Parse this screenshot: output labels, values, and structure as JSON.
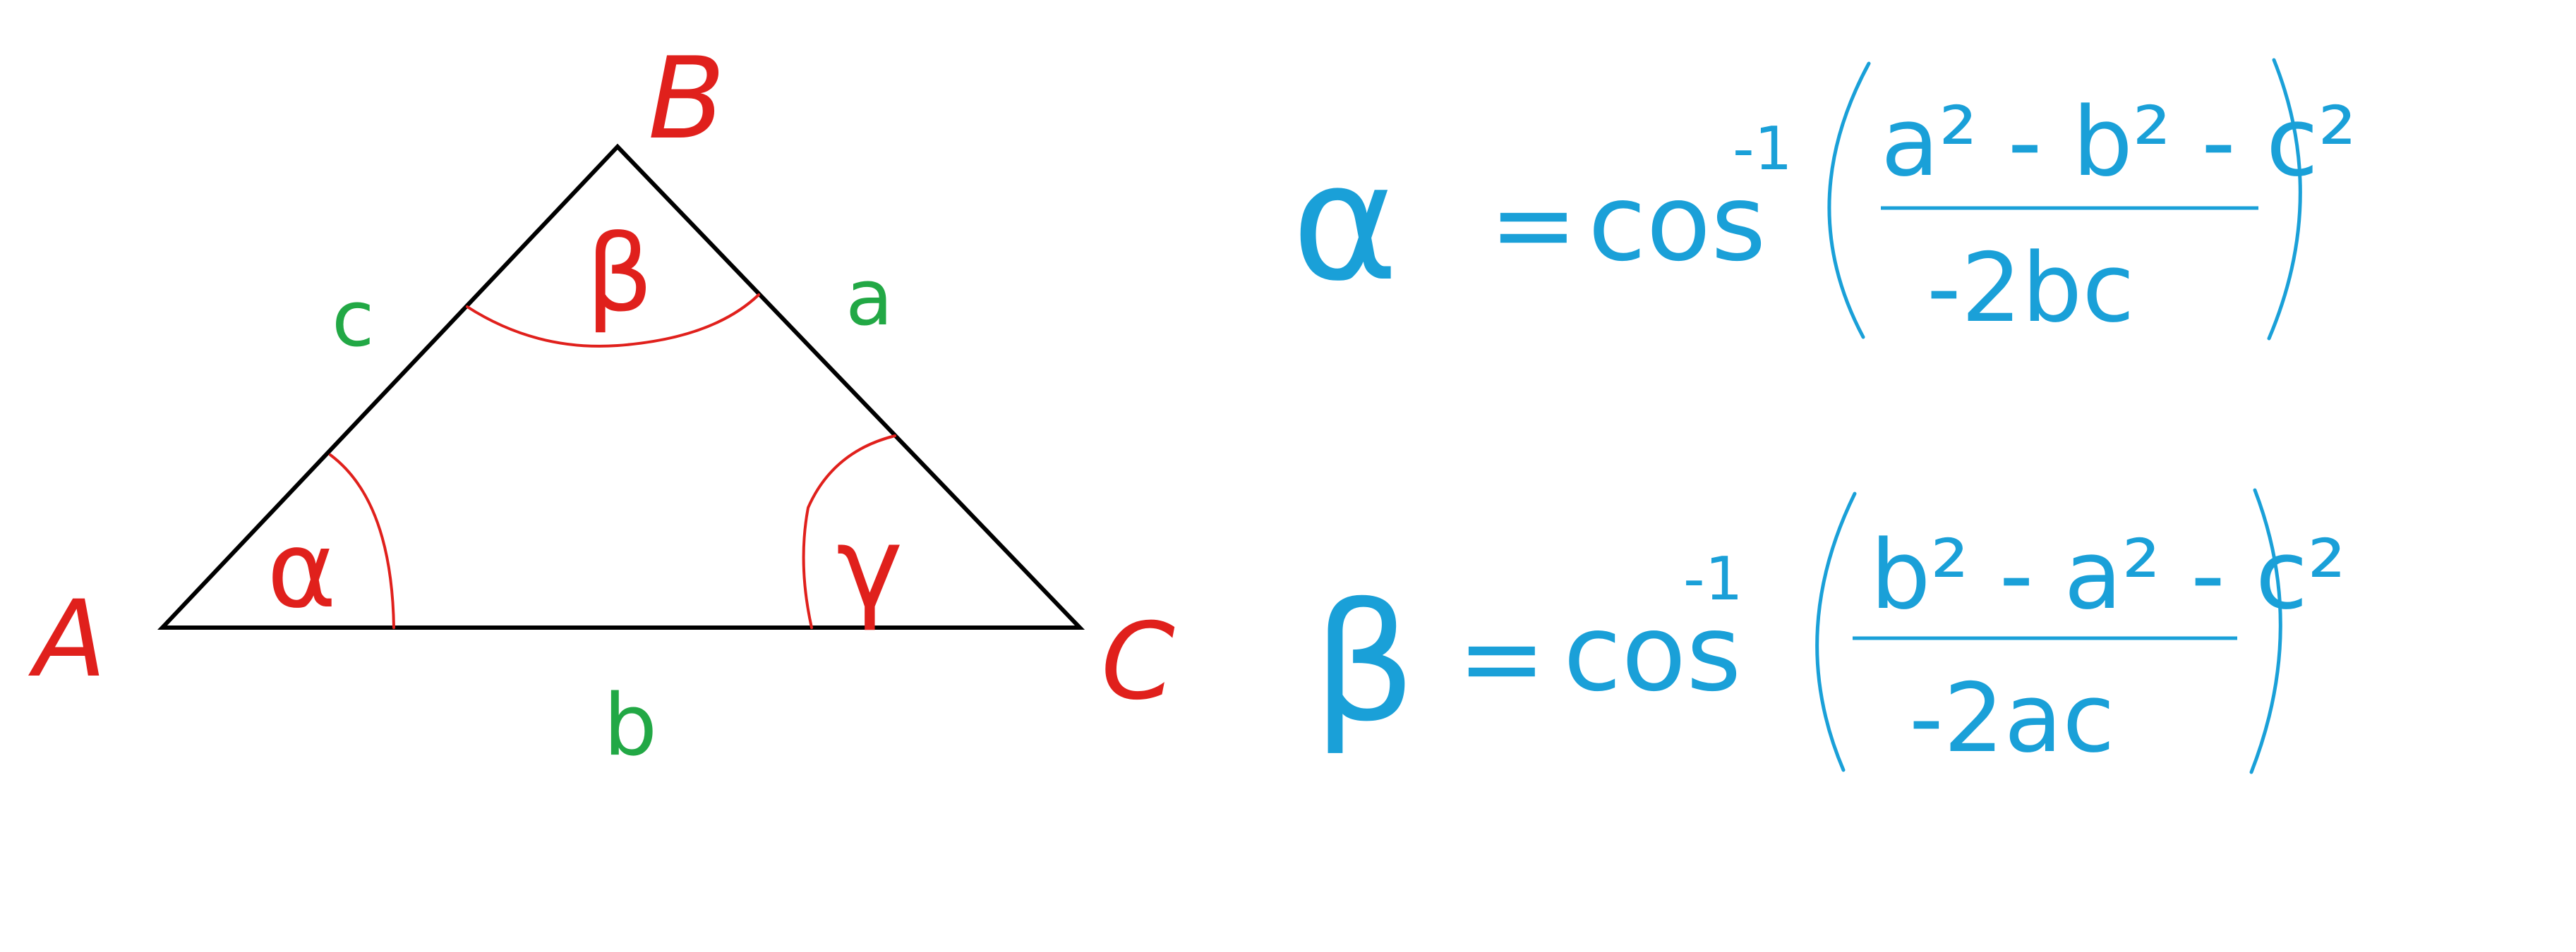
{
  "colors": {
    "triangle": "#000000",
    "vertex_label": "#e0201c",
    "angle_mark": "#e0201c",
    "side_label": "#22a845",
    "formula": "#1aa0d8"
  },
  "vertices": {
    "A": "A",
    "B": "B",
    "C": "C"
  },
  "sides": {
    "a": "a",
    "b": "b",
    "c": "c"
  },
  "angles": {
    "alpha": "α",
    "beta": "β",
    "gamma": "γ"
  },
  "formulas": [
    {
      "lhs": "α",
      "eq": "=",
      "func": "cos",
      "sup": "-1",
      "numerator": "a² - b² - c²",
      "denominator": "-2bc"
    },
    {
      "lhs": "β",
      "eq": "=",
      "func": "cos",
      "sup": "-1",
      "numerator": "b² - a² - c²",
      "denominator": "-2ac"
    }
  ]
}
